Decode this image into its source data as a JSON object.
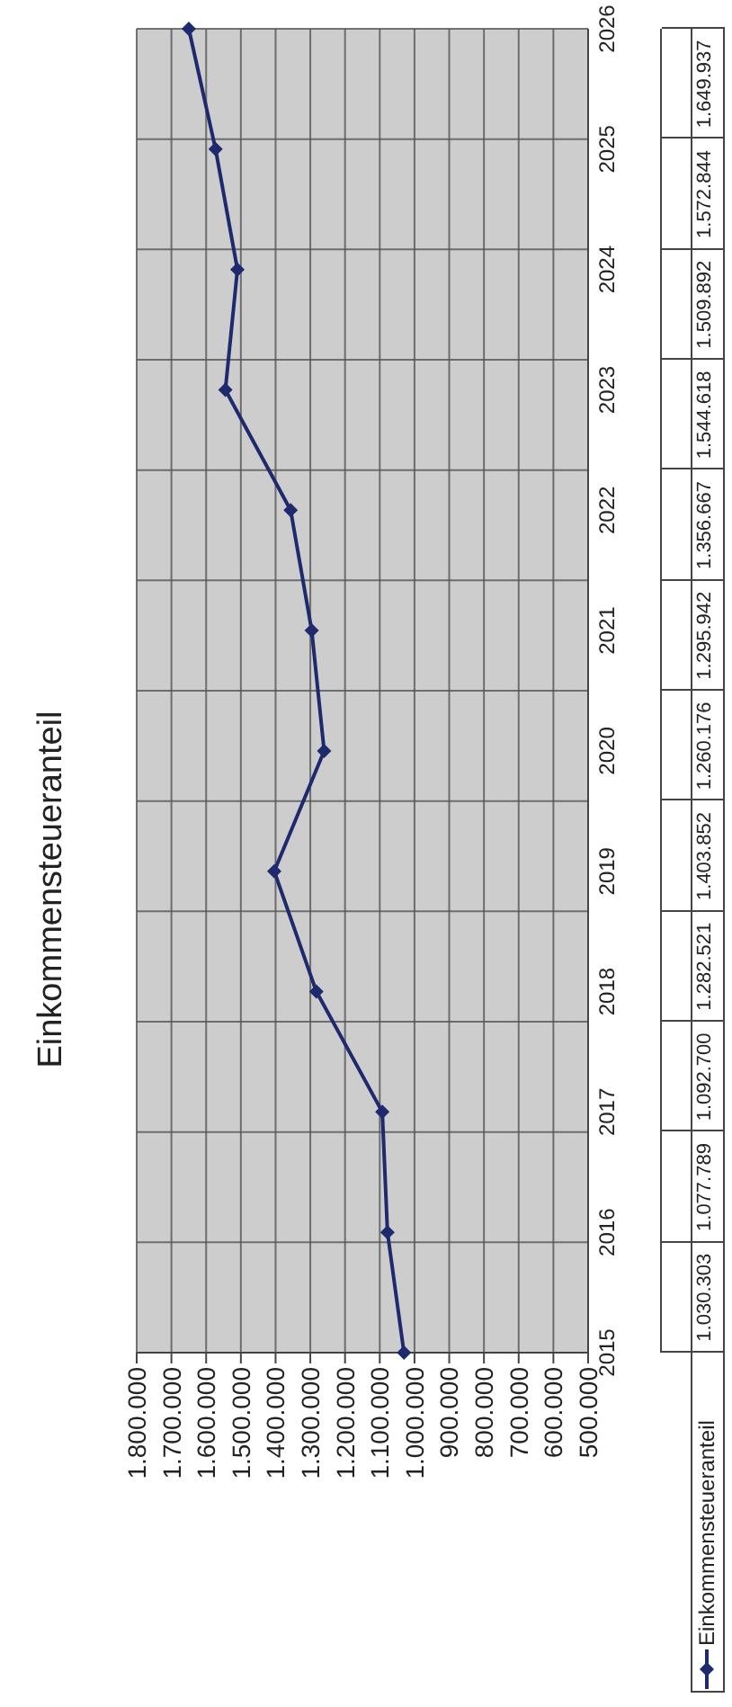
{
  "chart_data": {
    "type": "line",
    "title": "Einkommensteueranteil",
    "orientation": "horizontal",
    "categories": [
      "2026",
      "2025",
      "2024",
      "2023",
      "2022",
      "2021",
      "2020",
      "2019",
      "2018",
      "2017",
      "2016",
      "2015"
    ],
    "series": [
      {
        "name": "Einkommensteueranteil",
        "color": "#1f2a6e",
        "values": [
          1649937,
          1572844,
          1509892,
          1544618,
          1356667,
          1295942,
          1260176,
          1403852,
          1282521,
          1092700,
          1077789,
          1030303
        ],
        "value_labels": [
          "1.649.937",
          "1.572.844",
          "1.509.892",
          "1.544.618",
          "1.356.667",
          "1.295.942",
          "1.260.176",
          "1.403.852",
          "1.282.521",
          "1.092.700",
          "1.077.789",
          "1.030.303"
        ]
      }
    ],
    "xlim": [
      1800000,
      500000
    ],
    "xticks": [
      {
        "value": 1800000,
        "label": "1.800.000"
      },
      {
        "value": 1700000,
        "label": "1.700.000"
      },
      {
        "value": 1600000,
        "label": "1.600.000"
      },
      {
        "value": 1500000,
        "label": "1.500.000"
      },
      {
        "value": 1400000,
        "label": "1.400.000"
      },
      {
        "value": 1300000,
        "label": "1.300.000"
      },
      {
        "value": 1200000,
        "label": "1.200.000"
      },
      {
        "value": 1100000,
        "label": "1.100.000"
      },
      {
        "value": 1000000,
        "label": "1.000.000"
      },
      {
        "value": 900000,
        "label": "900.000"
      },
      {
        "value": 800000,
        "label": "800.000"
      },
      {
        "value": 700000,
        "label": "700.000"
      },
      {
        "value": 600000,
        "label": "600.000"
      },
      {
        "value": 500000,
        "label": "500.000"
      }
    ],
    "grid": true,
    "legend": "bottom",
    "marker": "diamond",
    "line_style": "solid"
  }
}
